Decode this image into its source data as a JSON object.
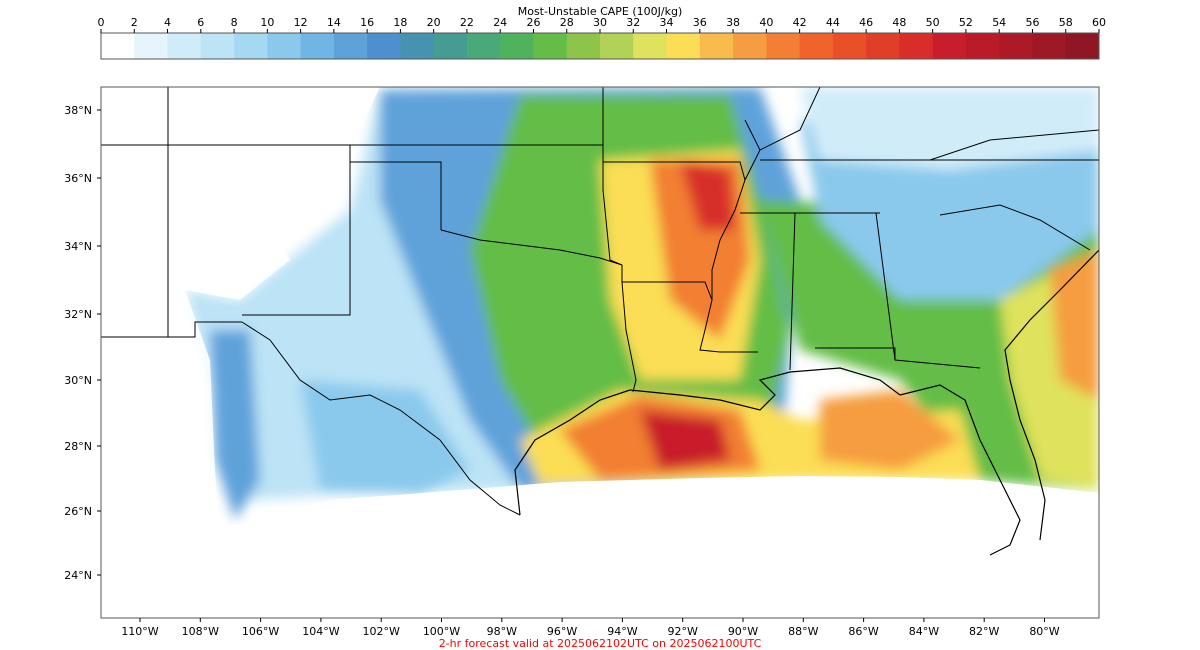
{
  "colorbar": {
    "title": "Most-Unstable CAPE (100J/kg)",
    "ticks": [
      "0",
      "2",
      "4",
      "6",
      "8",
      "10",
      "12",
      "14",
      "16",
      "18",
      "20",
      "22",
      "24",
      "26",
      "28",
      "30",
      "32",
      "34",
      "36",
      "38",
      "40",
      "42",
      "44",
      "46",
      "48",
      "50",
      "52",
      "54",
      "56",
      "58",
      "60"
    ],
    "colors": [
      "#ffffff",
      "#e6f4fc",
      "#d1ecf9",
      "#bce3f6",
      "#a5d8f3",
      "#8ac9ec",
      "#70b6e4",
      "#5ea2da",
      "#4e90cf",
      "#4593b0",
      "#459c92",
      "#49a978",
      "#4fb35d",
      "#63bd47",
      "#8cc54a",
      "#b2d257",
      "#dfe25c",
      "#fbde55",
      "#f8bb4c",
      "#f59d40",
      "#f27f33",
      "#f0632b",
      "#e95027",
      "#e03f27",
      "#d82d29",
      "#c81e2b",
      "#bb1b28",
      "#ac1a27",
      "#9e1926",
      "#8f1624"
    ]
  },
  "map": {
    "lat_labels": [
      "38°N",
      "36°N",
      "34°N",
      "32°N",
      "30°N",
      "28°N",
      "26°N",
      "24°N"
    ],
    "lon_labels": [
      "110°W",
      "108°W",
      "106°W",
      "104°W",
      "102°W",
      "100°W",
      "98°W",
      "96°W",
      "94°W",
      "92°W",
      "90°W",
      "88°W",
      "86°W",
      "84°W",
      "82°W",
      "80°W"
    ]
  },
  "footer": "2-hr forecast valid at 2025062102UTC on 2025062100UTC"
}
